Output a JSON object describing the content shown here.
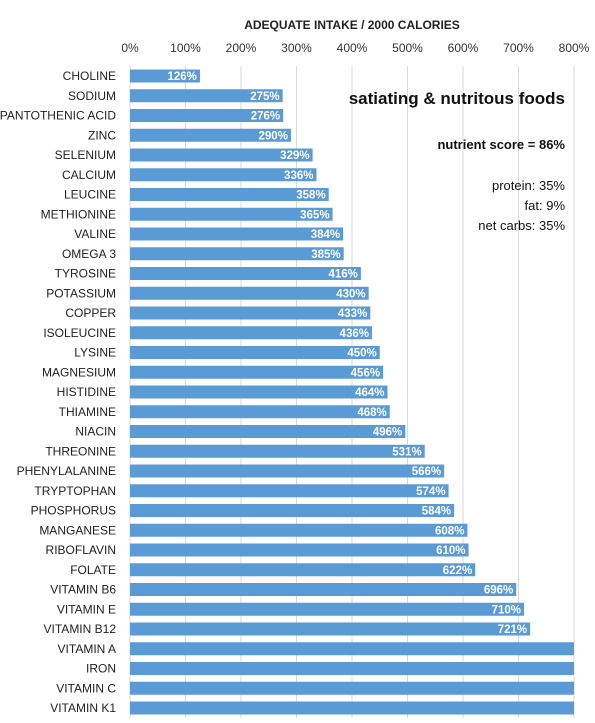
{
  "chart_data": {
    "type": "bar",
    "orientation": "horizontal",
    "title": "",
    "xlabel": "ADEQUATE INTAKE / 2000 CALORIES",
    "ylabel": "",
    "xlim": [
      0,
      800
    ],
    "xticks": [
      "0%",
      "100%",
      "200%",
      "300%",
      "400%",
      "500%",
      "600%",
      "700%",
      "800%"
    ],
    "grid": true,
    "bar_color": "#5B9BD5",
    "categories": [
      "CHOLINE",
      "SODIUM",
      "PANTOTHENIC ACID",
      "ZINC",
      "SELENIUM",
      "CALCIUM",
      "LEUCINE",
      "METHIONINE",
      "VALINE",
      "OMEGA 3",
      "TYROSINE",
      "POTASSIUM",
      "COPPER",
      "ISOLEUCINE",
      "LYSINE",
      "MAGNESIUM",
      "HISTIDINE",
      "THIAMINE",
      "NIACIN",
      "THREONINE",
      "PHENYLALANINE",
      "TRYPTOPHAN",
      "PHOSPHORUS",
      "MANGANESE",
      "RIBOFLAVIN",
      "FOLATE",
      "VITAMIN B6",
      "VITAMIN E",
      "VITAMIN B12",
      "VITAMIN A",
      "IRON",
      "VITAMIN C",
      "VITAMIN K1"
    ],
    "values": [
      126,
      275,
      276,
      290,
      329,
      336,
      358,
      365,
      384,
      385,
      416,
      430,
      433,
      436,
      450,
      456,
      464,
      468,
      496,
      531,
      566,
      574,
      584,
      608,
      610,
      622,
      696,
      710,
      721,
      800,
      800,
      800,
      800
    ],
    "value_labels": [
      "126%",
      "275%",
      "276%",
      "290%",
      "329%",
      "336%",
      "358%",
      "365%",
      "384%",
      "385%",
      "416%",
      "430%",
      "433%",
      "436%",
      "450%",
      "456%",
      "464%",
      "468%",
      "496%",
      "531%",
      "566%",
      "574%",
      "584%",
      "608%",
      "610%",
      "622%",
      "696%",
      "710%",
      "721%",
      "",
      "",
      "",
      ""
    ]
  },
  "annotations": {
    "title": "satiating & nutritous foods",
    "score": "nutrient score = 86%",
    "protein": "protein: 35%",
    "fat": "fat: 9%",
    "carbs": "net carbs: 35%"
  }
}
